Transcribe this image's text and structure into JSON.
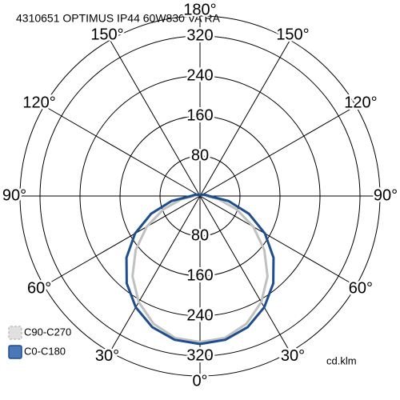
{
  "chart_data": {
    "type": "polar",
    "title": "4310651 OPTIMUS IP44 60W830 VA RA",
    "unit_label": "cd.klm",
    "rlim": [
      0,
      360
    ],
    "rticks": [
      80,
      160,
      240,
      320
    ],
    "thetaticks": [
      {
        "value": 0,
        "label": "0°"
      },
      {
        "value": 30,
        "label": "30°"
      },
      {
        "value": 60,
        "label": "60°"
      },
      {
        "value": 90,
        "label": "90°"
      },
      {
        "value": 120,
        "label": "120°"
      },
      {
        "value": 150,
        "label": "150°"
      },
      {
        "value": 180,
        "label": "180°"
      }
    ],
    "theta": [
      0,
      10,
      20,
      30,
      40,
      50,
      60,
      70,
      80,
      90,
      100,
      110,
      120,
      130,
      140,
      150,
      160,
      170,
      180
    ],
    "series": [
      {
        "name": "C90-C270",
        "color": "#c0c0c0",
        "values": [
          292,
          288,
          272,
          245,
          210,
          168,
          123,
          78,
          38,
          12,
          8,
          5,
          3,
          2,
          1,
          0,
          0,
          0,
          0
        ]
      },
      {
        "name": "C0-C180",
        "color": "#1f4e8c",
        "values": [
          296,
          292,
          279,
          257,
          228,
          192,
          150,
          104,
          58,
          18,
          12,
          8,
          5,
          3,
          2,
          1,
          0,
          0,
          0
        ]
      }
    ]
  }
}
